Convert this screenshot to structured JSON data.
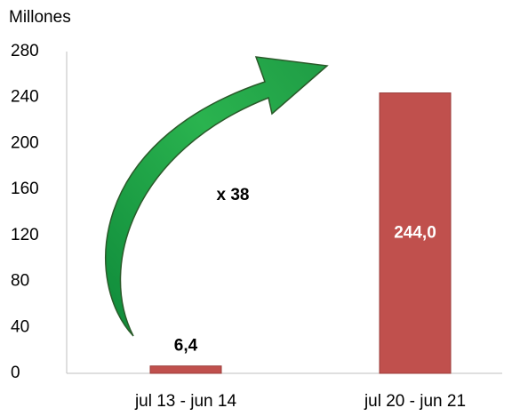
{
  "chart_data": {
    "type": "bar",
    "y_label": "Millones",
    "annotation": "x 38",
    "categories": [
      "jul 13 - jun 14",
      "jul 20 - jun 21"
    ],
    "values": [
      6.4,
      244.0
    ],
    "value_labels": [
      "6,4",
      "244,0"
    ],
    "color": "#c0504d",
    "annotation_color": "#1fa34a",
    "ylim": [
      0,
      280
    ],
    "yticks": [
      0,
      40,
      80,
      120,
      160,
      200,
      240,
      280
    ],
    "grid": false
  }
}
